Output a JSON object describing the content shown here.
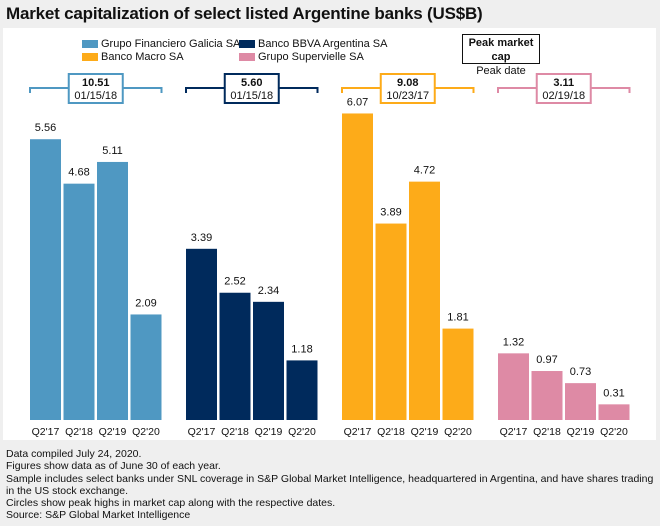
{
  "chart_data": {
    "type": "bar",
    "title": "Market capitalization of select listed Argentine banks (US$B)",
    "xlabel": "",
    "ylabel": "",
    "ylim": [
      0,
      6.5
    ],
    "grid": false,
    "legend_position": "top",
    "categories": [
      "Q2'17",
      "Q2'18",
      "Q2'19",
      "Q2'20"
    ],
    "series": [
      {
        "name": "Grupo Financiero Galicia SA",
        "color": "#4f98c2",
        "values": [
          5.56,
          4.68,
          5.11,
          2.09
        ],
        "labels": [
          "5.56",
          "4.68",
          "5.11",
          "2.09"
        ],
        "peak_value": "10.51",
        "peak_date": "01/15/18"
      },
      {
        "name": "Banco BBVA Argentina SA",
        "color": "#002a5c",
        "values": [
          3.39,
          2.52,
          2.34,
          1.18
        ],
        "labels": [
          "3.39",
          "2.52",
          "2.34",
          "1.18"
        ],
        "peak_value": "5.60",
        "peak_date": "01/15/18"
      },
      {
        "name": "Banco Macro SA",
        "color": "#fdab19",
        "values": [
          6.07,
          3.89,
          4.72,
          1.81
        ],
        "labels": [
          "6.07",
          "3.89",
          "4.72",
          "1.81"
        ],
        "peak_value": "9.08",
        "peak_date": "10/23/17"
      },
      {
        "name": "Grupo Supervielle SA",
        "color": "#de8aa5",
        "values": [
          1.32,
          0.97,
          0.73,
          0.31
        ],
        "labels": [
          "1.32",
          "0.97",
          "0.73",
          "0.31"
        ],
        "peak_value": "3.11",
        "peak_date": "02/19/18"
      }
    ]
  },
  "legend": {
    "key_title": "Peak market cap",
    "key_subtitle": "Peak date"
  },
  "footer": {
    "lines": [
      "Data compiled July 24, 2020.",
      "Figures show data as of June 30 of each year.",
      "Sample includes select banks under SNL coverage in S&P Global Market Intelligence, headquartered in Argentina, and have shares trading",
      "in the US stock exchange.",
      "Circles show peak highs in market cap along with the respective dates.",
      "Source: S&P Global Market Intelligence"
    ]
  }
}
